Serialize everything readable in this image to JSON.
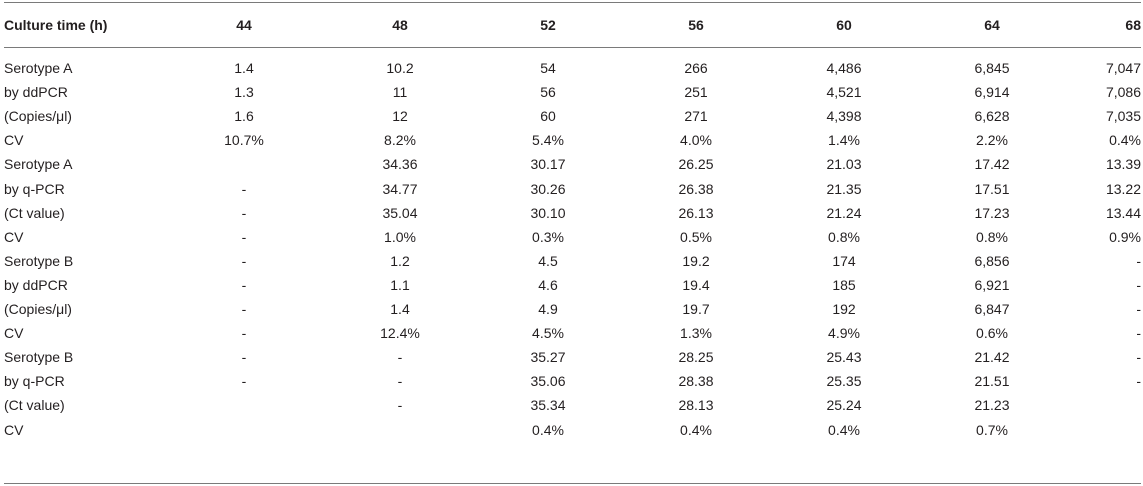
{
  "table": {
    "headers": [
      "Culture time (h)",
      "44",
      "48",
      "52",
      "56",
      "60",
      "64",
      "68"
    ],
    "rows": [
      [
        "Serotype A",
        "1.4",
        "10.2",
        "54",
        "266",
        "4,486",
        "6,845",
        "7,047"
      ],
      [
        "by ddPCR",
        "1.3",
        "11",
        "56",
        "251",
        "4,521",
        "6,914",
        "7,086"
      ],
      [
        "(Copies/μl)",
        "1.6",
        "12",
        "60",
        "271",
        "4,398",
        "6,628",
        "7,035"
      ],
      [
        "CV",
        "10.7%",
        "8.2%",
        "5.4%",
        "4.0%",
        "1.4%",
        "2.2%",
        "0.4%"
      ],
      [
        "Serotype A",
        "",
        "34.36",
        "30.17",
        "26.25",
        "21.03",
        "17.42",
        "13.39"
      ],
      [
        "by q-PCR",
        "-",
        "34.77",
        "30.26",
        "26.38",
        "21.35",
        "17.51",
        "13.22"
      ],
      [
        "(Ct value)",
        "-",
        "35.04",
        "30.10",
        "26.13",
        "21.24",
        "17.23",
        "13.44"
      ],
      [
        "CV",
        "-",
        "1.0%",
        "0.3%",
        "0.5%",
        "0.8%",
        "0.8%",
        "0.9%"
      ],
      [
        "Serotype B",
        "-",
        "1.2",
        "4.5",
        "19.2",
        "174",
        "6,856",
        "-"
      ],
      [
        "by ddPCR",
        "-",
        "1.1",
        "4.6",
        "19.4",
        "185",
        "6,921",
        "-"
      ],
      [
        "(Copies/μl)",
        "-",
        "1.4",
        "4.9",
        "19.7",
        "192",
        "6,847",
        "-"
      ],
      [
        "CV",
        "-",
        "12.4%",
        "4.5%",
        "1.3%",
        "4.9%",
        "0.6%",
        "-"
      ],
      [
        "Serotype B",
        "-",
        "-",
        "35.27",
        "28.25",
        "25.43",
        "21.42",
        "-"
      ],
      [
        "by q-PCR",
        "-",
        "-",
        "35.06",
        "28.38",
        "25.35",
        "21.51",
        "-"
      ],
      [
        "(Ct value)",
        "",
        "-",
        "35.34",
        "28.13",
        "25.24",
        "21.23",
        ""
      ],
      [
        "CV",
        "",
        "",
        "0.4%",
        "0.4%",
        "0.4%",
        "0.7%",
        ""
      ]
    ]
  }
}
